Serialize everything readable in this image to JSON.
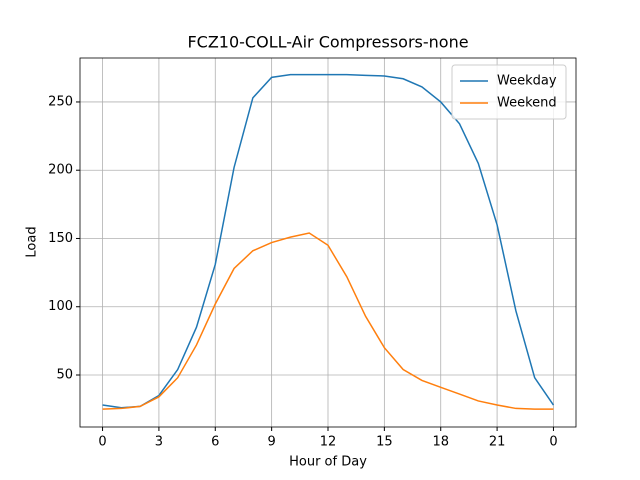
{
  "chart_data": {
    "type": "line",
    "title": "FCZ10-COLL-Air Compressors-none",
    "x_label": "Hour of Day",
    "y_label": "Load",
    "x": [
      0,
      1,
      2,
      3,
      4,
      5,
      6,
      7,
      8,
      9,
      10,
      11,
      12,
      13,
      14,
      15,
      16,
      17,
      18,
      19,
      20,
      21,
      22,
      23,
      24
    ],
    "series": [
      {
        "name": "Weekday",
        "color": "#1f77b4",
        "values": [
          28,
          26,
          27,
          35,
          54,
          85,
          131,
          202,
          253,
          268,
          270,
          270,
          270,
          270,
          269.5,
          269,
          267,
          261,
          250,
          234,
          205,
          160,
          97,
          48,
          28
        ]
      },
      {
        "name": "Weekend",
        "color": "#ff7f0e",
        "values": [
          25,
          25.5,
          27,
          34,
          48,
          72,
          102,
          128,
          141,
          147,
          151,
          154,
          145,
          122,
          93,
          70,
          54,
          46,
          41,
          36,
          31,
          28,
          25.5,
          25,
          25
        ]
      }
    ],
    "xlim": [
      -1.2,
      25.2
    ],
    "ylim": [
      11.9,
      282.2
    ],
    "xticks": [
      0,
      3,
      6,
      9,
      12,
      15,
      18,
      21,
      {
        "value": 24,
        "label": "0"
      }
    ],
    "yticks": [
      50,
      100,
      150,
      200,
      250
    ],
    "grid": true,
    "legend": "upper-right"
  }
}
